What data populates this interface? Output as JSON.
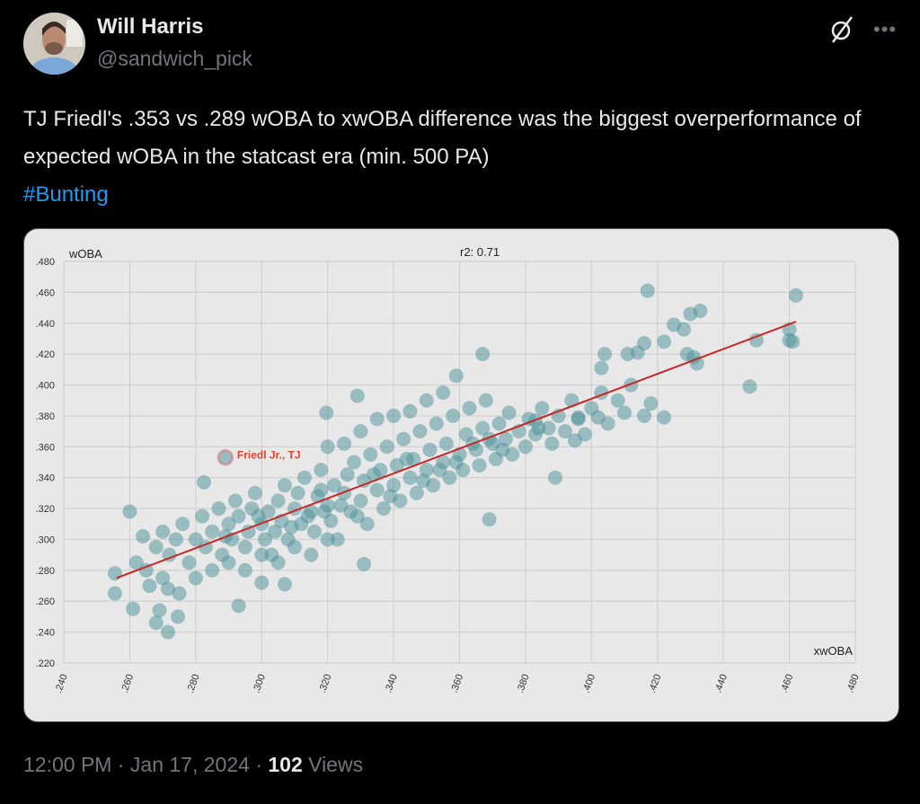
{
  "tweet": {
    "author_name": "Will Harris",
    "author_handle": "@sandwich_pick",
    "text_main": "TJ Friedl's .353 vs .289 wOBA to xwOBA difference was the biggest overperformance of expected wOBA in the statcast era (min. 500 PA)",
    "hashtag": "#Bunting",
    "time": "12:00 PM",
    "separator": "·",
    "date": "Jan 17, 2024",
    "views_count": "102",
    "views_label": "Views",
    "icons": {
      "grok": "grok-slash-circle-icon",
      "more": "more-dots-icon"
    }
  },
  "chart_data": {
    "type": "scatter",
    "title": "r2: 0.71",
    "xlabel": "xwOBA",
    "ylabel": "wOBA",
    "xlim": [
      0.24,
      0.48
    ],
    "ylim": [
      0.22,
      0.48
    ],
    "grid": true,
    "x_ticks": [
      ".240",
      ".260",
      ".280",
      ".300",
      ".320",
      ".340",
      ".360",
      ".380",
      ".400",
      ".420",
      ".440",
      ".460",
      ".480"
    ],
    "y_ticks": [
      ".480",
      ".460",
      ".440",
      ".420",
      ".400",
      ".380",
      ".360",
      ".340",
      ".320",
      ".300",
      ".280",
      ".260",
      ".240",
      ".220"
    ],
    "point_color": "#4a8f97",
    "trendline_color": "#c62828",
    "trendline": [
      [
        0.256,
        0.275
      ],
      [
        0.462,
        0.441
      ]
    ],
    "highlight": {
      "label": "Friedl Jr., TJ",
      "x": 0.289,
      "y": 0.353,
      "color": "#e8402a"
    },
    "points": [
      [
        0.417,
        0.461
      ],
      [
        0.462,
        0.458
      ],
      [
        0.46,
        0.436
      ],
      [
        0.461,
        0.428
      ],
      [
        0.46,
        0.429
      ],
      [
        0.45,
        0.429
      ],
      [
        0.448,
        0.399
      ],
      [
        0.43,
        0.446
      ],
      [
        0.433,
        0.448
      ],
      [
        0.425,
        0.439
      ],
      [
        0.428,
        0.436
      ],
      [
        0.429,
        0.42
      ],
      [
        0.431,
        0.418
      ],
      [
        0.432,
        0.414
      ],
      [
        0.416,
        0.427
      ],
      [
        0.422,
        0.428
      ],
      [
        0.414,
        0.421
      ],
      [
        0.411,
        0.42
      ],
      [
        0.404,
        0.42
      ],
      [
        0.403,
        0.411
      ],
      [
        0.418,
        0.388
      ],
      [
        0.416,
        0.38
      ],
      [
        0.422,
        0.379
      ],
      [
        0.402,
        0.379
      ],
      [
        0.396,
        0.379
      ],
      [
        0.2555,
        0.278
      ],
      [
        0.2555,
        0.265
      ],
      [
        0.26,
        0.318
      ],
      [
        0.261,
        0.255
      ],
      [
        0.268,
        0.246
      ],
      [
        0.2716,
        0.24
      ],
      [
        0.269,
        0.254
      ],
      [
        0.2746,
        0.25
      ],
      [
        0.2716,
        0.268
      ],
      [
        0.293,
        0.257
      ],
      [
        0.3,
        0.272
      ],
      [
        0.307,
        0.271
      ],
      [
        0.331,
        0.284
      ],
      [
        0.2825,
        0.337
      ],
      [
        0.3196,
        0.382
      ],
      [
        0.329,
        0.393
      ],
      [
        0.367,
        0.42
      ],
      [
        0.359,
        0.406
      ],
      [
        0.369,
        0.365
      ],
      [
        0.369,
        0.313
      ],
      [
        0.389,
        0.34
      ],
      [
        0.395,
        0.364
      ],
      [
        0.383,
        0.377
      ],
      [
        0.265,
        0.28
      ],
      [
        0.268,
        0.295
      ],
      [
        0.27,
        0.305
      ],
      [
        0.272,
        0.29
      ],
      [
        0.274,
        0.3
      ],
      [
        0.276,
        0.31
      ],
      [
        0.278,
        0.285
      ],
      [
        0.28,
        0.3
      ],
      [
        0.282,
        0.315
      ],
      [
        0.283,
        0.295
      ],
      [
        0.285,
        0.305
      ],
      [
        0.287,
        0.32
      ],
      [
        0.288,
        0.29
      ],
      [
        0.29,
        0.31
      ],
      [
        0.291,
        0.3
      ],
      [
        0.292,
        0.325
      ],
      [
        0.293,
        0.315
      ],
      [
        0.295,
        0.295
      ],
      [
        0.296,
        0.305
      ],
      [
        0.297,
        0.32
      ],
      [
        0.298,
        0.33
      ],
      [
        0.3,
        0.31
      ],
      [
        0.301,
        0.3
      ],
      [
        0.302,
        0.318
      ],
      [
        0.303,
        0.29
      ],
      [
        0.305,
        0.325
      ],
      [
        0.306,
        0.312
      ],
      [
        0.307,
        0.335
      ],
      [
        0.308,
        0.3
      ],
      [
        0.31,
        0.32
      ],
      [
        0.311,
        0.33
      ],
      [
        0.312,
        0.31
      ],
      [
        0.313,
        0.34
      ],
      [
        0.315,
        0.318
      ],
      [
        0.316,
        0.305
      ],
      [
        0.317,
        0.328
      ],
      [
        0.318,
        0.345
      ],
      [
        0.32,
        0.322
      ],
      [
        0.321,
        0.312
      ],
      [
        0.322,
        0.335
      ],
      [
        0.323,
        0.3
      ],
      [
        0.325,
        0.33
      ],
      [
        0.326,
        0.342
      ],
      [
        0.327,
        0.318
      ],
      [
        0.328,
        0.35
      ],
      [
        0.33,
        0.325
      ],
      [
        0.331,
        0.338
      ],
      [
        0.332,
        0.31
      ],
      [
        0.333,
        0.355
      ],
      [
        0.335,
        0.332
      ],
      [
        0.336,
        0.345
      ],
      [
        0.337,
        0.32
      ],
      [
        0.338,
        0.36
      ],
      [
        0.34,
        0.335
      ],
      [
        0.341,
        0.348
      ],
      [
        0.342,
        0.325
      ],
      [
        0.343,
        0.365
      ],
      [
        0.345,
        0.34
      ],
      [
        0.346,
        0.352
      ],
      [
        0.347,
        0.33
      ],
      [
        0.348,
        0.37
      ],
      [
        0.35,
        0.345
      ],
      [
        0.351,
        0.358
      ],
      [
        0.352,
        0.335
      ],
      [
        0.353,
        0.375
      ],
      [
        0.355,
        0.35
      ],
      [
        0.356,
        0.362
      ],
      [
        0.357,
        0.34
      ],
      [
        0.358,
        0.38
      ],
      [
        0.36,
        0.355
      ],
      [
        0.361,
        0.345
      ],
      [
        0.362,
        0.368
      ],
      [
        0.363,
        0.385
      ],
      [
        0.365,
        0.358
      ],
      [
        0.366,
        0.348
      ],
      [
        0.367,
        0.372
      ],
      [
        0.368,
        0.39
      ],
      [
        0.37,
        0.362
      ],
      [
        0.371,
        0.352
      ],
      [
        0.372,
        0.375
      ],
      [
        0.374,
        0.365
      ],
      [
        0.375,
        0.382
      ],
      [
        0.376,
        0.355
      ],
      [
        0.378,
        0.37
      ],
      [
        0.38,
        0.36
      ],
      [
        0.381,
        0.378
      ],
      [
        0.383,
        0.368
      ],
      [
        0.385,
        0.385
      ],
      [
        0.387,
        0.372
      ],
      [
        0.388,
        0.362
      ],
      [
        0.39,
        0.38
      ],
      [
        0.392,
        0.37
      ],
      [
        0.394,
        0.39
      ],
      [
        0.396,
        0.378
      ],
      [
        0.398,
        0.368
      ],
      [
        0.4,
        0.385
      ],
      [
        0.403,
        0.395
      ],
      [
        0.405,
        0.375
      ],
      [
        0.408,
        0.39
      ],
      [
        0.41,
        0.382
      ],
      [
        0.412,
        0.4
      ],
      [
        0.264,
        0.302
      ],
      [
        0.262,
        0.285
      ],
      [
        0.266,
        0.27
      ],
      [
        0.27,
        0.275
      ],
      [
        0.275,
        0.265
      ],
      [
        0.28,
        0.275
      ],
      [
        0.285,
        0.28
      ],
      [
        0.29,
        0.285
      ],
      [
        0.295,
        0.28
      ],
      [
        0.3,
        0.29
      ],
      [
        0.305,
        0.285
      ],
      [
        0.31,
        0.295
      ],
      [
        0.315,
        0.29
      ],
      [
        0.32,
        0.3
      ],
      [
        0.32,
        0.36
      ],
      [
        0.325,
        0.362
      ],
      [
        0.33,
        0.37
      ],
      [
        0.335,
        0.378
      ],
      [
        0.34,
        0.38
      ],
      [
        0.345,
        0.383
      ],
      [
        0.35,
        0.39
      ],
      [
        0.355,
        0.395
      ],
      [
        0.318,
        0.332
      ],
      [
        0.324,
        0.322
      ],
      [
        0.334,
        0.342
      ],
      [
        0.344,
        0.352
      ],
      [
        0.354,
        0.345
      ],
      [
        0.364,
        0.362
      ],
      [
        0.339,
        0.328
      ],
      [
        0.329,
        0.315
      ],
      [
        0.349,
        0.338
      ],
      [
        0.359,
        0.35
      ],
      [
        0.373,
        0.358
      ],
      [
        0.384,
        0.372
      ],
      [
        0.304,
        0.305
      ],
      [
        0.314,
        0.315
      ],
      [
        0.309,
        0.308
      ],
      [
        0.319,
        0.318
      ],
      [
        0.299,
        0.315
      ],
      [
        0.289,
        0.302
      ]
    ]
  }
}
